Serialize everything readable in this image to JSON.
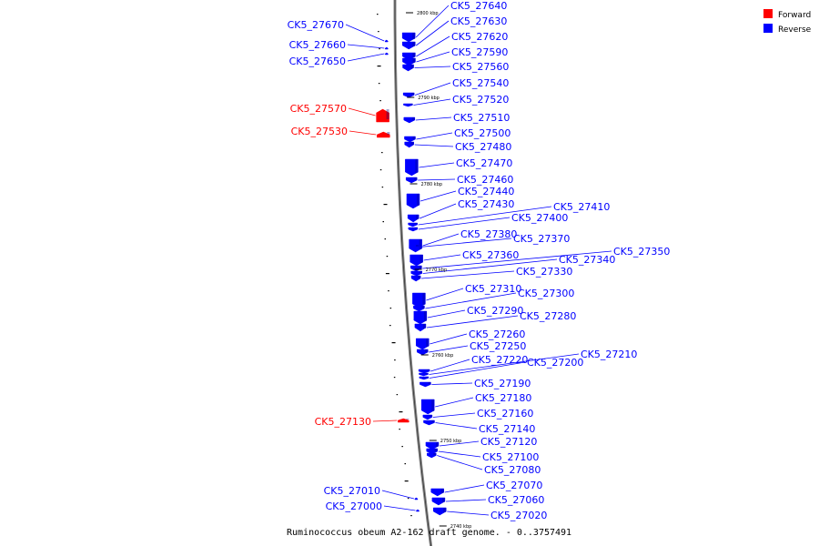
{
  "caption": "Ruminococcus obeum A2-162 draft genome. - 0..3757491",
  "legend": [
    {
      "label": "Forward",
      "color": "#ff0000"
    },
    {
      "label": "Reverse",
      "color": "#0000ff"
    }
  ],
  "colors": {
    "forward": "#ff0000",
    "reverse": "#0000ff",
    "backbone": "#888888"
  },
  "ticks": [
    "2800 kbp",
    "2790 kbp",
    "2780 kbp",
    "2770 kbp",
    "2760 kbp",
    "2750 kbp",
    "2740 kbp"
  ],
  "genes": [
    {
      "id": "CK5_27640",
      "strand": "reverse"
    },
    {
      "id": "CK5_27630",
      "strand": "reverse"
    },
    {
      "id": "CK5_27620",
      "strand": "reverse"
    },
    {
      "id": "CK5_27590",
      "strand": "reverse"
    },
    {
      "id": "CK5_27560",
      "strand": "reverse"
    },
    {
      "id": "CK5_27540",
      "strand": "reverse"
    },
    {
      "id": "CK5_27520",
      "strand": "reverse"
    },
    {
      "id": "CK5_27510",
      "strand": "reverse"
    },
    {
      "id": "CK5_27500",
      "strand": "reverse"
    },
    {
      "id": "CK5_27480",
      "strand": "reverse"
    },
    {
      "id": "CK5_27470",
      "strand": "reverse"
    },
    {
      "id": "CK5_27460",
      "strand": "reverse"
    },
    {
      "id": "CK5_27440",
      "strand": "reverse"
    },
    {
      "id": "CK5_27430",
      "strand": "reverse"
    },
    {
      "id": "CK5_27410",
      "strand": "reverse"
    },
    {
      "id": "CK5_27400",
      "strand": "reverse"
    },
    {
      "id": "CK5_27380",
      "strand": "reverse"
    },
    {
      "id": "CK5_27370",
      "strand": "reverse"
    },
    {
      "id": "CK5_27360",
      "strand": "reverse"
    },
    {
      "id": "CK5_27350",
      "strand": "reverse"
    },
    {
      "id": "CK5_27340",
      "strand": "reverse"
    },
    {
      "id": "CK5_27330",
      "strand": "reverse"
    },
    {
      "id": "CK5_27310",
      "strand": "reverse"
    },
    {
      "id": "CK5_27300",
      "strand": "reverse"
    },
    {
      "id": "CK5_27290",
      "strand": "reverse"
    },
    {
      "id": "CK5_27280",
      "strand": "reverse"
    },
    {
      "id": "CK5_27260",
      "strand": "reverse"
    },
    {
      "id": "CK5_27250",
      "strand": "reverse"
    },
    {
      "id": "CK5_27220",
      "strand": "reverse"
    },
    {
      "id": "CK5_27210",
      "strand": "reverse"
    },
    {
      "id": "CK5_27200",
      "strand": "reverse"
    },
    {
      "id": "CK5_27190",
      "strand": "reverse"
    },
    {
      "id": "CK5_27180",
      "strand": "reverse"
    },
    {
      "id": "CK5_27160",
      "strand": "reverse"
    },
    {
      "id": "CK5_27140",
      "strand": "reverse"
    },
    {
      "id": "CK5_27120",
      "strand": "reverse"
    },
    {
      "id": "CK5_27100",
      "strand": "reverse"
    },
    {
      "id": "CK5_27080",
      "strand": "reverse"
    },
    {
      "id": "CK5_27070",
      "strand": "reverse"
    },
    {
      "id": "CK5_27060",
      "strand": "reverse"
    },
    {
      "id": "CK5_27020",
      "strand": "reverse"
    },
    {
      "id": "CK5_27670",
      "strand": "reverse"
    },
    {
      "id": "CK5_27660",
      "strand": "reverse"
    },
    {
      "id": "CK5_27650",
      "strand": "reverse"
    },
    {
      "id": "CK5_27010",
      "strand": "reverse"
    },
    {
      "id": "CK5_27000",
      "strand": "reverse"
    },
    {
      "id": "CK5_27570",
      "strand": "forward"
    },
    {
      "id": "CK5_27530",
      "strand": "forward"
    },
    {
      "id": "CK5_27130",
      "strand": "forward"
    }
  ]
}
